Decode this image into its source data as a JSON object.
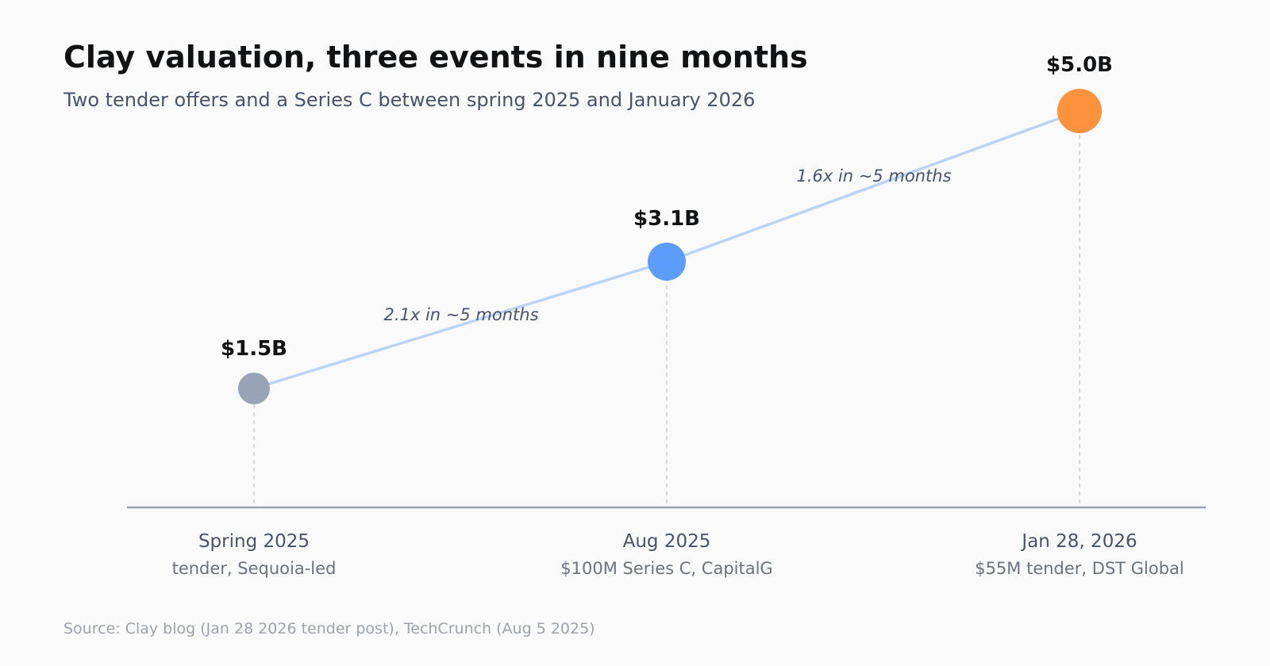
{
  "header": {
    "title": "Clay valuation, three events in nine months",
    "subtitle": "Two tender offers and a Series C between spring 2025 and January 2026"
  },
  "footer": {
    "source": "Source: Clay blog (Jan 28 2026 tender post), TechCrunch (Aug 5 2025)"
  },
  "colors": {
    "line": "#b9d4f5",
    "axis": "#9ca3ab",
    "guide": "#c8ccd2",
    "event_colors": [
      "#98a4b6",
      "#5c9cfb",
      "#fb923c"
    ]
  },
  "chart_data": {
    "type": "line",
    "title": "Clay valuation, three events in nine months",
    "subtitle": "Two tender offers and a Series C between spring 2025 and January 2026",
    "xlabel": "",
    "ylabel": "",
    "unit": "USD billions",
    "grid": false,
    "legend": "none",
    "categories": [
      "Spring 2025",
      "Aug 2025",
      "Jan 28, 2026"
    ],
    "details": [
      "tender, Sequoia-led",
      "$100M Series C, CapitalG",
      "$55M tender, DST Global"
    ],
    "values": [
      1.5,
      3.1,
      5.0
    ],
    "value_labels": [
      "$1.5B",
      "$3.1B",
      "$5.0B"
    ],
    "ylim": [
      0,
      5.8
    ],
    "annotations": [
      "2.1x in ~5 months",
      "1.6x in ~5 months"
    ]
  }
}
